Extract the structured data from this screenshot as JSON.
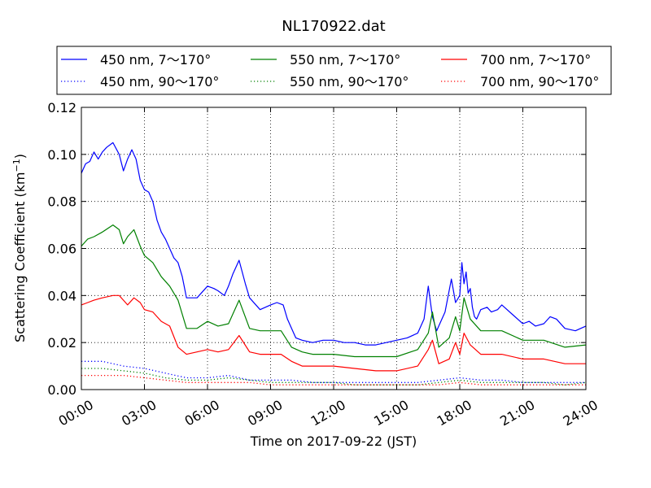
{
  "chart_data": {
    "type": "line",
    "title": "NL170922.dat",
    "xlabel": "Time on 2017-09-22 (JST)",
    "ylabel": "Scattering Coefficient (km",
    "ylabel_exponent": "−1",
    "ylabel_close": ")",
    "xlim": [
      0,
      24
    ],
    "ylim": [
      0,
      0.12
    ],
    "x_unit": "hours",
    "grid": true,
    "legend_position": "top",
    "xticks": [
      {
        "value": 0,
        "label": "00:00"
      },
      {
        "value": 3,
        "label": "03:00"
      },
      {
        "value": 6,
        "label": "06:00"
      },
      {
        "value": 9,
        "label": "09:00"
      },
      {
        "value": 12,
        "label": "12:00"
      },
      {
        "value": 15,
        "label": "15:00"
      },
      {
        "value": 18,
        "label": "18:00"
      },
      {
        "value": 21,
        "label": "21:00"
      },
      {
        "value": 24,
        "label": "24:00"
      }
    ],
    "yticks": [
      {
        "value": 0.0,
        "label": "0.00"
      },
      {
        "value": 0.02,
        "label": "0.02"
      },
      {
        "value": 0.04,
        "label": "0.04"
      },
      {
        "value": 0.06,
        "label": "0.06"
      },
      {
        "value": 0.08,
        "label": "0.08"
      },
      {
        "value": 0.1,
        "label": "0.10"
      },
      {
        "value": 0.12,
        "label": "0.12"
      }
    ],
    "series": [
      {
        "name": "450 nm, 7～170°",
        "color": "#0000ff",
        "style": "solid",
        "x": [
          0,
          0.2,
          0.4,
          0.6,
          0.8,
          1.0,
          1.2,
          1.5,
          1.8,
          2.0,
          2.2,
          2.4,
          2.6,
          2.8,
          3.0,
          3.2,
          3.4,
          3.6,
          3.8,
          4.0,
          4.2,
          4.4,
          4.6,
          4.8,
          5.0,
          5.5,
          6.0,
          6.3,
          6.5,
          6.8,
          7.0,
          7.2,
          7.5,
          7.8,
          8.0,
          8.5,
          9.0,
          9.3,
          9.6,
          9.8,
          10.0,
          10.2,
          10.5,
          11.0,
          11.5,
          12.0,
          12.5,
          13.0,
          13.5,
          14.0,
          14.5,
          15.0,
          15.5,
          16.0,
          16.3,
          16.5,
          16.7,
          16.8,
          16.9,
          17.0,
          17.3,
          17.6,
          17.8,
          18.0,
          18.1,
          18.2,
          18.3,
          18.4,
          18.5,
          18.6,
          18.7,
          18.8,
          19.0,
          19.3,
          19.5,
          19.8,
          20.0,
          20.5,
          21.0,
          21.3,
          21.6,
          22.0,
          22.3,
          22.6,
          23.0,
          23.5,
          24.0
        ],
        "y": [
          0.092,
          0.096,
          0.097,
          0.101,
          0.098,
          0.101,
          0.103,
          0.105,
          0.1,
          0.093,
          0.098,
          0.102,
          0.098,
          0.089,
          0.085,
          0.084,
          0.08,
          0.072,
          0.067,
          0.064,
          0.06,
          0.056,
          0.054,
          0.048,
          0.039,
          0.039,
          0.044,
          0.043,
          0.042,
          0.04,
          0.044,
          0.049,
          0.055,
          0.045,
          0.039,
          0.034,
          0.036,
          0.037,
          0.036,
          0.03,
          0.026,
          0.022,
          0.021,
          0.02,
          0.021,
          0.021,
          0.02,
          0.02,
          0.019,
          0.019,
          0.02,
          0.021,
          0.022,
          0.024,
          0.03,
          0.044,
          0.031,
          0.028,
          0.025,
          0.027,
          0.033,
          0.047,
          0.037,
          0.04,
          0.054,
          0.045,
          0.05,
          0.041,
          0.043,
          0.035,
          0.031,
          0.03,
          0.034,
          0.035,
          0.033,
          0.034,
          0.036,
          0.032,
          0.028,
          0.029,
          0.027,
          0.028,
          0.031,
          0.03,
          0.026,
          0.025,
          0.027
        ]
      },
      {
        "name": "450 nm, 90～170°",
        "color": "#0000ff",
        "style": "dotted",
        "x": [
          0,
          1,
          2,
          3,
          4,
          5,
          6,
          7,
          8,
          9,
          10,
          11,
          12,
          13,
          14,
          15,
          16,
          17,
          18,
          19,
          20,
          21,
          22,
          23,
          24
        ],
        "y": [
          0.012,
          0.012,
          0.01,
          0.009,
          0.007,
          0.005,
          0.005,
          0.006,
          0.004,
          0.004,
          0.004,
          0.003,
          0.003,
          0.003,
          0.003,
          0.003,
          0.003,
          0.004,
          0.005,
          0.004,
          0.004,
          0.003,
          0.003,
          0.003,
          0.003
        ]
      },
      {
        "name": "550 nm, 7～170°",
        "color": "#008000",
        "style": "solid",
        "x": [
          0,
          0.3,
          0.6,
          1.0,
          1.5,
          1.8,
          2.0,
          2.2,
          2.5,
          2.8,
          3.0,
          3.4,
          3.8,
          4.2,
          4.6,
          5.0,
          5.5,
          6.0,
          6.5,
          7.0,
          7.5,
          8.0,
          8.5,
          9.0,
          9.5,
          10.0,
          10.5,
          11.0,
          12.0,
          13.0,
          14.0,
          15.0,
          16.0,
          16.5,
          16.7,
          17.0,
          17.5,
          17.8,
          18.0,
          18.2,
          18.5,
          19.0,
          19.5,
          20.0,
          21.0,
          22.0,
          23.0,
          24.0
        ],
        "y": [
          0.061,
          0.064,
          0.065,
          0.067,
          0.07,
          0.068,
          0.062,
          0.065,
          0.068,
          0.061,
          0.057,
          0.054,
          0.048,
          0.044,
          0.038,
          0.026,
          0.026,
          0.029,
          0.027,
          0.028,
          0.038,
          0.026,
          0.025,
          0.025,
          0.025,
          0.018,
          0.016,
          0.015,
          0.015,
          0.014,
          0.014,
          0.014,
          0.017,
          0.024,
          0.033,
          0.018,
          0.022,
          0.031,
          0.025,
          0.039,
          0.03,
          0.025,
          0.025,
          0.025,
          0.021,
          0.021,
          0.018,
          0.019
        ]
      },
      {
        "name": "550 nm, 90～170°",
        "color": "#008000",
        "style": "dotted",
        "x": [
          0,
          1,
          2,
          3,
          4,
          5,
          6,
          7,
          8,
          9,
          10,
          11,
          12,
          13,
          14,
          15,
          16,
          17,
          18,
          19,
          20,
          21,
          22,
          23,
          24
        ],
        "y": [
          0.009,
          0.009,
          0.008,
          0.007,
          0.005,
          0.004,
          0.004,
          0.005,
          0.004,
          0.003,
          0.003,
          0.003,
          0.003,
          0.002,
          0.002,
          0.002,
          0.002,
          0.003,
          0.004,
          0.003,
          0.003,
          0.003,
          0.003,
          0.002,
          0.003
        ]
      },
      {
        "name": "700 nm, 7～170°",
        "color": "#ff0000",
        "style": "solid",
        "x": [
          0,
          0.3,
          0.6,
          1.0,
          1.5,
          1.8,
          2.0,
          2.2,
          2.5,
          2.8,
          3.0,
          3.4,
          3.8,
          4.2,
          4.6,
          5.0,
          5.5,
          6.0,
          6.5,
          7.0,
          7.5,
          8.0,
          8.5,
          9.0,
          9.5,
          10.0,
          10.5,
          11.0,
          12.0,
          13.0,
          14.0,
          15.0,
          16.0,
          16.5,
          16.7,
          17.0,
          17.5,
          17.8,
          18.0,
          18.2,
          18.5,
          19.0,
          19.5,
          20.0,
          21.0,
          22.0,
          23.0,
          24.0
        ],
        "y": [
          0.036,
          0.037,
          0.038,
          0.039,
          0.04,
          0.04,
          0.038,
          0.036,
          0.039,
          0.037,
          0.034,
          0.033,
          0.029,
          0.027,
          0.018,
          0.015,
          0.016,
          0.017,
          0.016,
          0.017,
          0.023,
          0.016,
          0.015,
          0.015,
          0.015,
          0.012,
          0.01,
          0.01,
          0.01,
          0.009,
          0.008,
          0.008,
          0.01,
          0.017,
          0.021,
          0.011,
          0.013,
          0.02,
          0.015,
          0.024,
          0.019,
          0.015,
          0.015,
          0.015,
          0.013,
          0.013,
          0.011,
          0.011
        ]
      },
      {
        "name": "700 nm, 90～170°",
        "color": "#ff0000",
        "style": "dotted",
        "x": [
          0,
          1,
          2,
          3,
          4,
          5,
          6,
          7,
          8,
          9,
          10,
          11,
          12,
          13,
          14,
          15,
          16,
          17,
          18,
          19,
          20,
          21,
          22,
          23,
          24
        ],
        "y": [
          0.006,
          0.006,
          0.006,
          0.005,
          0.004,
          0.003,
          0.003,
          0.003,
          0.003,
          0.002,
          0.002,
          0.002,
          0.002,
          0.002,
          0.002,
          0.002,
          0.002,
          0.002,
          0.003,
          0.002,
          0.002,
          0.002,
          0.002,
          0.002,
          0.002
        ]
      }
    ]
  }
}
